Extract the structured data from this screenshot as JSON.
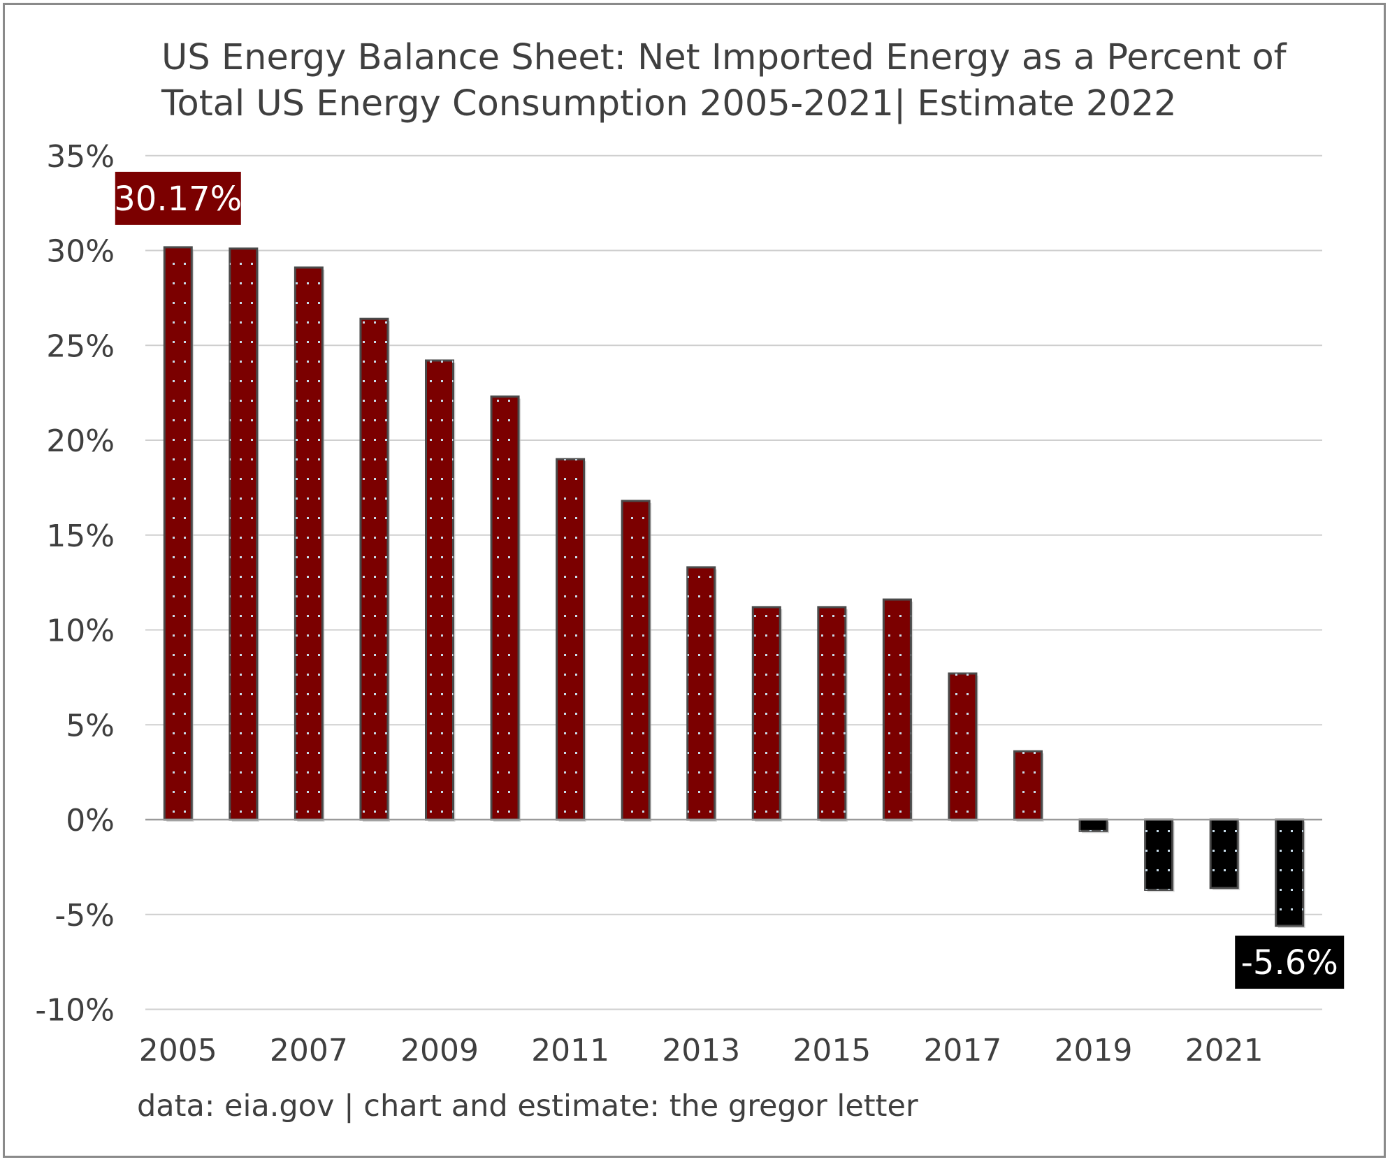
{
  "chart_data": {
    "type": "bar",
    "title_lines": [
      "US Energy Balance Sheet: Net Imported Energy as a Percent of",
      "Total US Energy Consumption 2005-2021| Estimate 2022"
    ],
    "categories": [
      "2005",
      "2006",
      "2007",
      "2008",
      "2009",
      "2010",
      "2011",
      "2012",
      "2013",
      "2014",
      "2015",
      "2016",
      "2017",
      "2018",
      "2019",
      "2020",
      "2021",
      "2022"
    ],
    "values": [
      30.17,
      30.1,
      29.1,
      26.4,
      24.2,
      22.3,
      19.0,
      16.8,
      13.3,
      11.2,
      11.2,
      11.6,
      7.7,
      3.6,
      -0.6,
      -3.7,
      -3.6,
      -5.6
    ],
    "x_tick_labels": [
      "2005",
      "2007",
      "2009",
      "2011",
      "2013",
      "2015",
      "2017",
      "2019",
      "2021"
    ],
    "ylim": [
      -10,
      35
    ],
    "y_tick_values": [
      -10,
      -5,
      0,
      5,
      10,
      15,
      20,
      25,
      30,
      35
    ],
    "y_tick_labels": [
      "-10%",
      "-5%",
      "0%",
      "5%",
      "10%",
      "15%",
      "20%",
      "25%",
      "30%",
      "35%"
    ],
    "grid": true,
    "colors": {
      "positive": "#7b0000",
      "negative": "#000000",
      "outline": "#4a4a4a",
      "dots": "#c8dcea",
      "grid": "#cfcfcf",
      "axis": "#9a9a9a",
      "text": "#3f3f3f"
    },
    "annotations": [
      {
        "category": "2005",
        "text": "30.17%",
        "background": "#7b0000"
      },
      {
        "category": "2022",
        "text": "-5.6%",
        "background": "#000000"
      }
    ],
    "source_note": "data: eia.gov | chart and estimate: the gregor letter"
  }
}
